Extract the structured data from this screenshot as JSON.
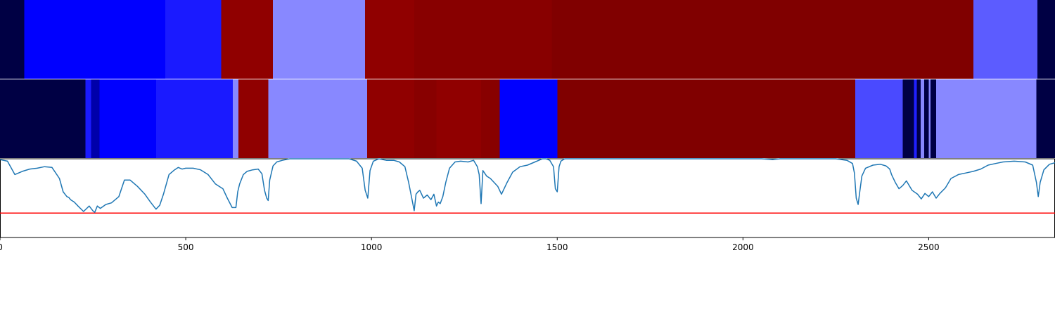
{
  "chart_data": {
    "type": "heatmap",
    "title": "",
    "xlabel": "",
    "ylabel": "",
    "x_range": [
      0,
      2840
    ],
    "x_ticks": [
      0,
      500,
      1000,
      1500,
      2000,
      2500
    ],
    "tick_labels": [
      "0",
      "500",
      "1000",
      "1500",
      "2000",
      "2500"
    ],
    "grid": false,
    "tracks": [
      {
        "segments": [
          {
            "start": 0,
            "end": 65,
            "color": "#000044"
          },
          {
            "start": 65,
            "end": 445,
            "color": "#0000ff"
          },
          {
            "start": 445,
            "end": 595,
            "color": "#1a1aff"
          },
          {
            "start": 595,
            "end": 735,
            "color": "#900000"
          },
          {
            "start": 735,
            "end": 983,
            "color": "#8888ff"
          },
          {
            "start": 983,
            "end": 1115,
            "color": "#900000"
          },
          {
            "start": 1115,
            "end": 1485,
            "color": "#880000"
          },
          {
            "start": 1485,
            "end": 2620,
            "color": "#800000"
          },
          {
            "start": 2620,
            "end": 2793,
            "color": "#5c5cff"
          },
          {
            "start": 2793,
            "end": 2840,
            "color": "#000044"
          }
        ]
      },
      {
        "segments": [
          {
            "start": 0,
            "end": 230,
            "color": "#000044"
          },
          {
            "start": 230,
            "end": 245,
            "color": "#1a1aff"
          },
          {
            "start": 245,
            "end": 268,
            "color": "#0000aa"
          },
          {
            "start": 268,
            "end": 420,
            "color": "#0000ff"
          },
          {
            "start": 420,
            "end": 627,
            "color": "#1a1aff"
          },
          {
            "start": 627,
            "end": 642,
            "color": "#8888ff"
          },
          {
            "start": 642,
            "end": 722,
            "color": "#900000"
          },
          {
            "start": 722,
            "end": 988,
            "color": "#8888ff"
          },
          {
            "start": 988,
            "end": 1115,
            "color": "#900000"
          },
          {
            "start": 1115,
            "end": 1175,
            "color": "#880000"
          },
          {
            "start": 1175,
            "end": 1295,
            "color": "#900000"
          },
          {
            "start": 1295,
            "end": 1345,
            "color": "#880000"
          },
          {
            "start": 1345,
            "end": 1500,
            "color": "#0000ff"
          },
          {
            "start": 1500,
            "end": 2302,
            "color": "#800000"
          },
          {
            "start": 2302,
            "end": 2430,
            "color": "#4a4aff"
          },
          {
            "start": 2430,
            "end": 2460,
            "color": "#000044"
          },
          {
            "start": 2460,
            "end": 2468,
            "color": "#2020ff"
          },
          {
            "start": 2468,
            "end": 2478,
            "color": "#000044"
          },
          {
            "start": 2478,
            "end": 2488,
            "color": "#8888ff"
          },
          {
            "start": 2488,
            "end": 2500,
            "color": "#000044"
          },
          {
            "start": 2500,
            "end": 2505,
            "color": "#8888ff"
          },
          {
            "start": 2505,
            "end": 2520,
            "color": "#000044"
          },
          {
            "start": 2520,
            "end": 2790,
            "color": "#8888ff"
          },
          {
            "start": 2790,
            "end": 2840,
            "color": "#000044"
          }
        ]
      }
    ],
    "line_panel": {
      "y_range": [
        0,
        1
      ],
      "threshold": 0.31,
      "threshold_color": "#ff0000",
      "line_color": "#1f77b4",
      "series": {
        "x": [
          0,
          20,
          40,
          60,
          80,
          100,
          120,
          140,
          160,
          170,
          180,
          185,
          190,
          200,
          210,
          225,
          240,
          250,
          255,
          262,
          270,
          285,
          300,
          320,
          335,
          350,
          370,
          390,
          405,
          420,
          430,
          440,
          455,
          470,
          480,
          490,
          500,
          520,
          540,
          560,
          580,
          590,
          600,
          612,
          625,
          635,
          640,
          645,
          655,
          665,
          680,
          695,
          705,
          712,
          718,
          722,
          726,
          735,
          745,
          760,
          780,
          800,
          830,
          860,
          900,
          940,
          960,
          975,
          983,
          990,
          996,
          1005,
          1020,
          1040,
          1060,
          1075,
          1090,
          1100,
          1110,
          1115,
          1120,
          1125,
          1130,
          1140,
          1150,
          1160,
          1168,
          1175,
          1180,
          1185,
          1192,
          1200,
          1210,
          1225,
          1240,
          1260,
          1275,
          1285,
          1290,
          1295,
          1300,
          1310,
          1320,
          1330,
          1340,
          1350,
          1365,
          1380,
          1400,
          1420,
          1440,
          1460,
          1470,
          1480,
          1490,
          1495,
          1500,
          1505,
          1510,
          1520,
          1550,
          1600,
          1700,
          1800,
          1900,
          2000,
          2050,
          2080,
          2100,
          2150,
          2200,
          2250,
          2280,
          2295,
          2300,
          2305,
          2310,
          2315,
          2320,
          2330,
          2350,
          2370,
          2385,
          2395,
          2400,
          2410,
          2420,
          2430,
          2440,
          2455,
          2470,
          2480,
          2490,
          2500,
          2510,
          2520,
          2530,
          2545,
          2560,
          2580,
          2600,
          2620,
          2640,
          2660,
          2680,
          2700,
          2730,
          2760,
          2780,
          2790,
          2795,
          2800,
          2810,
          2825,
          2840
        ],
        "y": [
          0.99,
          0.97,
          0.8,
          0.84,
          0.87,
          0.88,
          0.9,
          0.89,
          0.75,
          0.58,
          0.52,
          0.51,
          0.48,
          0.45,
          0.4,
          0.33,
          0.4,
          0.34,
          0.32,
          0.4,
          0.37,
          0.42,
          0.44,
          0.52,
          0.73,
          0.73,
          0.65,
          0.55,
          0.45,
          0.36,
          0.41,
          0.55,
          0.8,
          0.86,
          0.89,
          0.87,
          0.88,
          0.88,
          0.86,
          0.8,
          0.68,
          0.65,
          0.62,
          0.5,
          0.38,
          0.38,
          0.58,
          0.68,
          0.8,
          0.84,
          0.86,
          0.87,
          0.81,
          0.6,
          0.5,
          0.47,
          0.73,
          0.91,
          0.96,
          0.98,
          1.0,
          1.0,
          1.0,
          1.0,
          1.0,
          1.0,
          0.97,
          0.88,
          0.6,
          0.5,
          0.85,
          0.97,
          1.0,
          0.98,
          0.98,
          0.96,
          0.9,
          0.7,
          0.46,
          0.34,
          0.55,
          0.58,
          0.6,
          0.5,
          0.54,
          0.48,
          0.55,
          0.4,
          0.45,
          0.43,
          0.52,
          0.7,
          0.88,
          0.96,
          0.97,
          0.96,
          0.98,
          0.9,
          0.8,
          0.43,
          0.85,
          0.78,
          0.75,
          0.7,
          0.65,
          0.55,
          0.7,
          0.83,
          0.9,
          0.92,
          0.96,
          1.0,
          1.0,
          0.98,
          0.9,
          0.62,
          0.58,
          0.9,
          0.97,
          1.0,
          1.0,
          1.0,
          1.0,
          1.0,
          1.0,
          1.0,
          1.0,
          0.99,
          1.0,
          1.0,
          1.0,
          1.0,
          0.98,
          0.94,
          0.82,
          0.5,
          0.42,
          0.6,
          0.78,
          0.88,
          0.92,
          0.93,
          0.91,
          0.87,
          0.8,
          0.7,
          0.62,
          0.66,
          0.72,
          0.6,
          0.55,
          0.49,
          0.56,
          0.52,
          0.58,
          0.5,
          0.56,
          0.63,
          0.75,
          0.8,
          0.82,
          0.84,
          0.87,
          0.92,
          0.94,
          0.96,
          0.97,
          0.96,
          0.92,
          0.7,
          0.52,
          0.7,
          0.86,
          0.93,
          0.95
        ]
      }
    }
  }
}
